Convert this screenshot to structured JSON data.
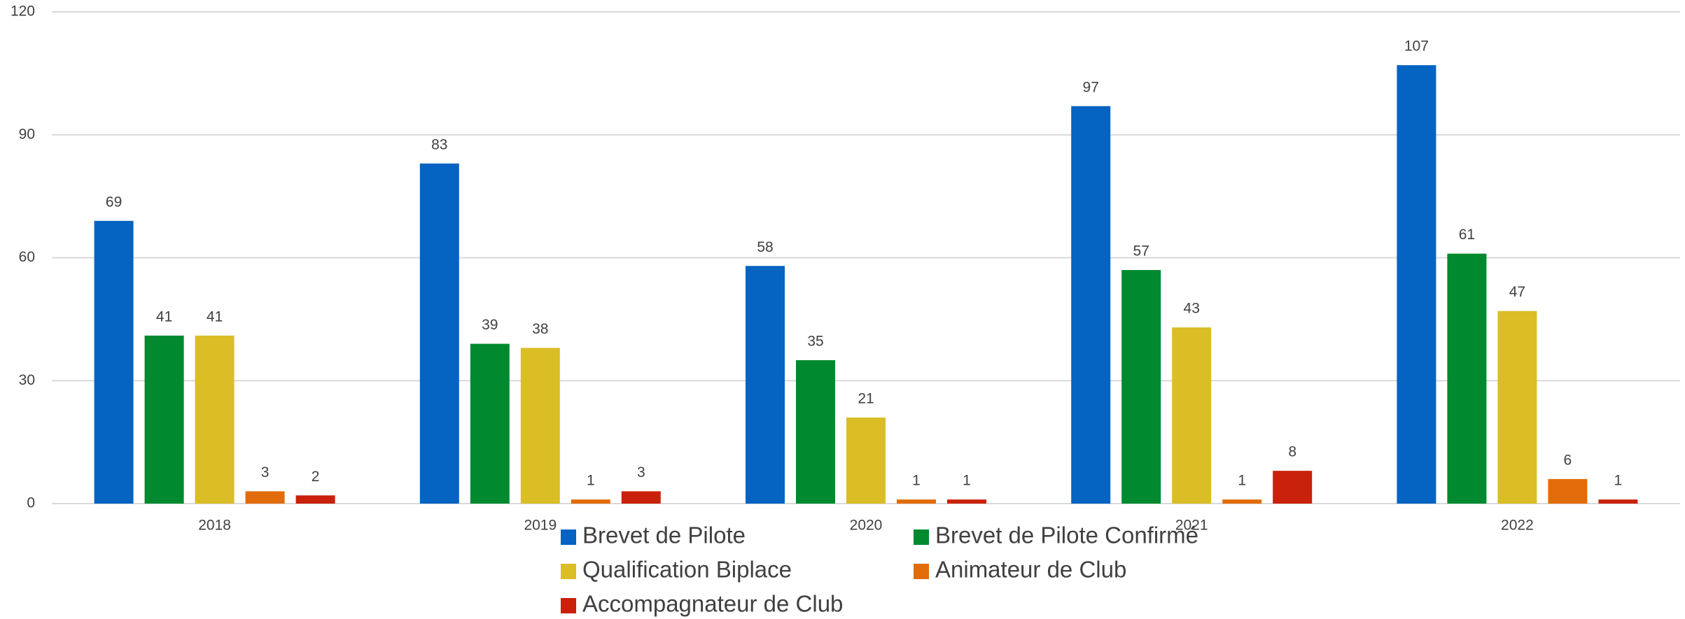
{
  "chart_data": {
    "type": "bar",
    "categories": [
      "2018",
      "2019",
      "2020",
      "2021",
      "2022"
    ],
    "series": [
      {
        "name": "Brevet de Pilote",
        "color": "#0563c1",
        "values": [
          69,
          83,
          58,
          97,
          107
        ]
      },
      {
        "name": "Brevet de Pilote Confirmé",
        "color": "#00892f",
        "values": [
          41,
          39,
          35,
          57,
          61
        ]
      },
      {
        "name": "Qualification Biplace",
        "color": "#dbbd26",
        "values": [
          41,
          38,
          21,
          43,
          47
        ]
      },
      {
        "name": "Animateur de Club",
        "color": "#e36c0a",
        "values": [
          3,
          1,
          1,
          1,
          6
        ]
      },
      {
        "name": "Accompagnateur de Club",
        "color": "#c9210c",
        "values": [
          2,
          3,
          1,
          8,
          1
        ]
      }
    ],
    "ylim": [
      0,
      120
    ],
    "yticks": [
      0,
      30,
      60,
      90,
      120
    ],
    "grid": true,
    "legend": "bottom"
  }
}
